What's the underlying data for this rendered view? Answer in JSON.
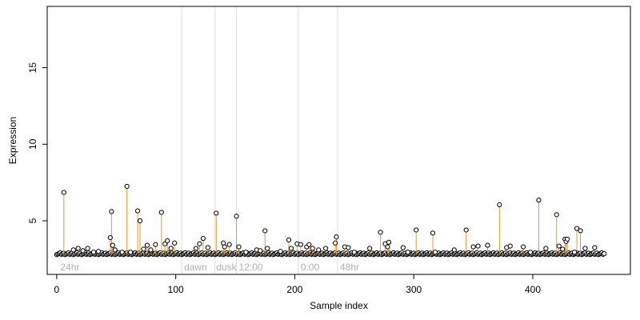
{
  "chart_data": {
    "type": "scatter",
    "title": "",
    "xlabel": "Sample index",
    "ylabel": "Expression",
    "xlim": [
      -8,
      482
    ],
    "ylim": [
      1.5,
      19
    ],
    "x_ticks": [
      0,
      100,
      200,
      300,
      400
    ],
    "y_ticks": [
      5,
      10,
      15
    ],
    "grid": false,
    "colors": {
      "point_fill": "#ffffff",
      "point_stroke": "#000000",
      "baseline": "#6f9fd8",
      "stem": "#e59a21",
      "separator": "#dddddd",
      "annotation": "#b0b0b0"
    },
    "baseline": {
      "y": 2.85,
      "x_range": [
        0,
        460
      ]
    },
    "separators": [
      105,
      133,
      151,
      203,
      236
    ],
    "annotations": [
      {
        "text": "24hr",
        "x": 3
      },
      {
        "text": "dawn",
        "x": 107
      },
      {
        "text": "dusk",
        "x": 134
      },
      {
        "text": "12:00",
        "x": 153
      },
      {
        "text": "0:00",
        "x": 205
      },
      {
        "text": "48hr",
        "x": 238
      }
    ],
    "points": [
      [
        6,
        6.85
      ],
      [
        14,
        3.1
      ],
      [
        18,
        3.2
      ],
      [
        22,
        3.05
      ],
      [
        26,
        3.2
      ],
      [
        31,
        2.95
      ],
      [
        35,
        3.0
      ],
      [
        45,
        3.9
      ],
      [
        46,
        5.6
      ],
      [
        47,
        3.4
      ],
      [
        49,
        3.1
      ],
      [
        55,
        2.95
      ],
      [
        59,
        7.25
      ],
      [
        62,
        2.95
      ],
      [
        68,
        5.65
      ],
      [
        70,
        5.0
      ],
      [
        73,
        3.15
      ],
      [
        76,
        3.4
      ],
      [
        79,
        3.1
      ],
      [
        83,
        3.45
      ],
      [
        88,
        5.55
      ],
      [
        91,
        3.5
      ],
      [
        93,
        3.7
      ],
      [
        96,
        3.2
      ],
      [
        99,
        3.55
      ],
      [
        117,
        3.2
      ],
      [
        120,
        3.5
      ],
      [
        123,
        3.85
      ],
      [
        127,
        3.25
      ],
      [
        134,
        5.5
      ],
      [
        140,
        3.55
      ],
      [
        141,
        3.3
      ],
      [
        145,
        3.45
      ],
      [
        151,
        5.3
      ],
      [
        153,
        3.3
      ],
      [
        159,
        2.95
      ],
      [
        168,
        3.1
      ],
      [
        171,
        3.05
      ],
      [
        175,
        4.35
      ],
      [
        177,
        3.2
      ],
      [
        188,
        3.0
      ],
      [
        195,
        3.75
      ],
      [
        197,
        3.2
      ],
      [
        202,
        3.5
      ],
      [
        205,
        3.45
      ],
      [
        210,
        3.3
      ],
      [
        212,
        3.45
      ],
      [
        215,
        3.2
      ],
      [
        220,
        3.1
      ],
      [
        226,
        3.2
      ],
      [
        234,
        3.55
      ],
      [
        235,
        3.95
      ],
      [
        242,
        3.3
      ],
      [
        245,
        3.25
      ],
      [
        250,
        2.95
      ],
      [
        263,
        3.2
      ],
      [
        272,
        4.25
      ],
      [
        276,
        3.5
      ],
      [
        278,
        3.3
      ],
      [
        279,
        3.6
      ],
      [
        291,
        3.25
      ],
      [
        295,
        2.95
      ],
      [
        302,
        4.4
      ],
      [
        316,
        4.2
      ],
      [
        318,
        2.95
      ],
      [
        334,
        3.1
      ],
      [
        344,
        4.4
      ],
      [
        350,
        3.3
      ],
      [
        354,
        3.35
      ],
      [
        362,
        3.4
      ],
      [
        372,
        6.05
      ],
      [
        378,
        3.25
      ],
      [
        381,
        3.35
      ],
      [
        392,
        3.3
      ],
      [
        398,
        2.95
      ],
      [
        405,
        6.35
      ],
      [
        411,
        3.2
      ],
      [
        420,
        5.4
      ],
      [
        422,
        3.35
      ],
      [
        425,
        3.15
      ],
      [
        427,
        3.8
      ],
      [
        428,
        3.65
      ],
      [
        429,
        3.8
      ],
      [
        435,
        2.95
      ],
      [
        437,
        4.5
      ],
      [
        440,
        4.35
      ],
      [
        444,
        3.2
      ],
      [
        452,
        3.25
      ]
    ]
  }
}
